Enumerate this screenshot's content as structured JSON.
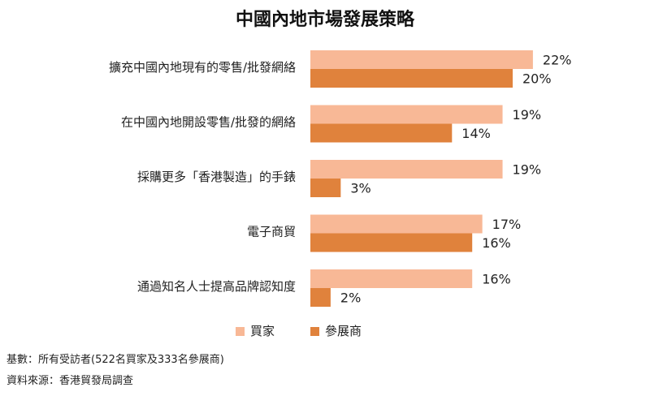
{
  "chart_data": {
    "type": "bar",
    "orientation": "horizontal",
    "title": "中國內地市場發展策略",
    "categories": [
      "擴充中國內地現有的零售/批發網絡",
      "在中國內地開設零售/批發的網絡",
      "採購更多「香港製造」的手錶",
      "電子商貿",
      "通過知名人士提高品牌認知度"
    ],
    "series": [
      {
        "name": "買家",
        "values": [
          22,
          19,
          19,
          17,
          16
        ],
        "color": "#f8b896"
      },
      {
        "name": "參展商",
        "values": [
          20,
          14,
          3,
          16,
          2
        ],
        "color": "#e0823c"
      }
    ],
    "value_suffix": "%",
    "xlim": [
      0,
      30
    ],
    "grid": false,
    "legend_position": "bottom"
  },
  "footnotes": {
    "base": "基數：所有受訪者(522名買家及333名參展商)",
    "source": "資料來源：香港貿發局調查"
  }
}
